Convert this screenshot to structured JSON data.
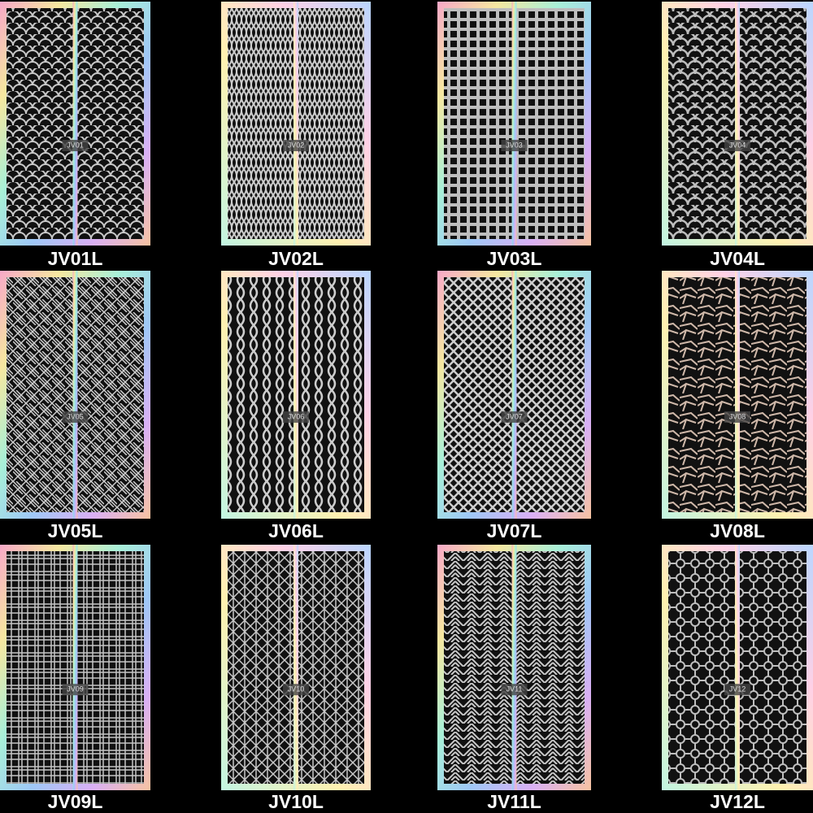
{
  "panels": [
    {
      "code": "JV01",
      "label": "JV01L"
    },
    {
      "code": "JV02",
      "label": "JV02L"
    },
    {
      "code": "JV03",
      "label": "JV03L"
    },
    {
      "code": "JV04",
      "label": "JV04L"
    },
    {
      "code": "JV05",
      "label": "JV05L"
    },
    {
      "code": "JV06",
      "label": "JV06L"
    },
    {
      "code": "JV07",
      "label": "JV07L"
    },
    {
      "code": "JV08",
      "label": "JV08L"
    },
    {
      "code": "JV09",
      "label": "JV09L"
    },
    {
      "code": "JV10",
      "label": "JV10L"
    },
    {
      "code": "JV11",
      "label": "JV11L"
    },
    {
      "code": "JV12",
      "label": "JV12L"
    }
  ]
}
